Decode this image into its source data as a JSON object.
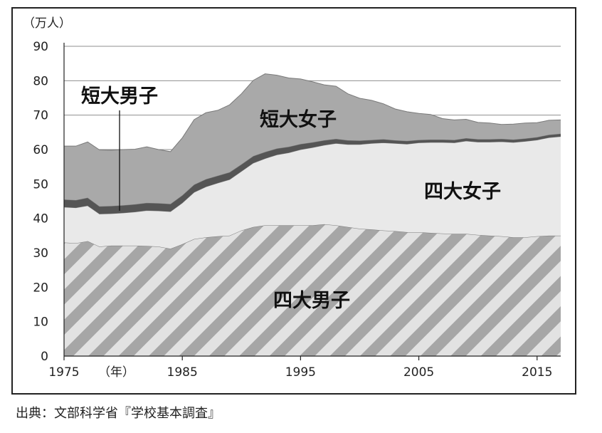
{
  "chart_data": {
    "type": "area",
    "stacked": true,
    "unit_label": "（万人）",
    "x_year_suffix": "（年）",
    "ylim": [
      0,
      90
    ],
    "y_ticks": [
      0,
      10,
      20,
      30,
      40,
      50,
      60,
      70,
      80,
      90
    ],
    "x_ticks": [
      1975,
      1985,
      1995,
      2005,
      2015
    ],
    "grid": true,
    "x": [
      1975,
      1976,
      1977,
      1978,
      1979,
      1980,
      1981,
      1982,
      1983,
      1984,
      1985,
      1986,
      1987,
      1988,
      1989,
      1990,
      1991,
      1992,
      1993,
      1994,
      1995,
      1996,
      1997,
      1998,
      1999,
      2000,
      2001,
      2002,
      2003,
      2004,
      2005,
      2006,
      2007,
      2008,
      2009,
      2010,
      2011,
      2012,
      2013,
      2014,
      2015,
      2016,
      2017
    ],
    "series": [
      {
        "name": "四大男子",
        "pattern": "hatch",
        "values": [
          33,
          32.8,
          33.4,
          31.8,
          32.1,
          32.1,
          32.1,
          32,
          31.8,
          31.2,
          32.5,
          34,
          34.5,
          34.8,
          35,
          36.5,
          37.5,
          38,
          38,
          38,
          38,
          38,
          38.3,
          38,
          37.5,
          37,
          36.8,
          36.5,
          36.3,
          36,
          36,
          35.8,
          35.6,
          35.5,
          35.5,
          35.2,
          35,
          34.8,
          34.5,
          34.5,
          34.8,
          35,
          35
        ]
      },
      {
        "name": "四大女子",
        "color": "#e9e9e9",
        "values": [
          10.3,
          10.3,
          10.3,
          9.5,
          9.3,
          9.5,
          9.8,
          10.3,
          10.4,
          10.8,
          12,
          13.6,
          14.7,
          15.5,
          16.3,
          17.2,
          18.6,
          19.4,
          20.5,
          21.1,
          22,
          22.6,
          23,
          23.8,
          24,
          24.5,
          25,
          25.5,
          25.5,
          25.6,
          26,
          26.3,
          26.5,
          26.5,
          27,
          27,
          27.2,
          27.5,
          27.6,
          27.9,
          28,
          28.5,
          28.8
        ]
      },
      {
        "name": "短大男子",
        "color": "#555555",
        "values": [
          2.2,
          2.2,
          2.3,
          2.2,
          2.2,
          2.2,
          2.2,
          2.2,
          2.2,
          2.2,
          2.2,
          2.2,
          2.2,
          2.1,
          2.1,
          2,
          2,
          1.9,
          1.8,
          1.7,
          1.6,
          1.5,
          1.4,
          1.3,
          1.2,
          1.1,
          1,
          1,
          0.9,
          0.9,
          0.8,
          0.8,
          0.8,
          0.8,
          0.8,
          0.8,
          0.8,
          0.8,
          0.8,
          0.8,
          0.8,
          0.8,
          0.8
        ]
      },
      {
        "name": "短大女子",
        "color": "#a9a9a9",
        "values": [
          15.5,
          15.7,
          16.2,
          16.4,
          16.2,
          16.2,
          16,
          16.3,
          15.6,
          15.2,
          16.7,
          18.9,
          19.3,
          19,
          19.6,
          20.5,
          22,
          22.7,
          21.3,
          20,
          18.9,
          17.6,
          16.1,
          15.3,
          13.5,
          12.3,
          11.5,
          10.3,
          9.1,
          8.5,
          7.7,
          7.3,
          6.1,
          5.8,
          5.5,
          4.9,
          4.7,
          4.2,
          4.5,
          4.5,
          4.2,
          4.2,
          4
        ]
      }
    ]
  },
  "labels": {
    "tandai_danshi": "短大男子",
    "tandai_joshi": "短大女子",
    "yondai_joshi": "四大女子",
    "yondai_danshi": "四大男子"
  },
  "source": "出典：文部科学省『学校基本調査』"
}
